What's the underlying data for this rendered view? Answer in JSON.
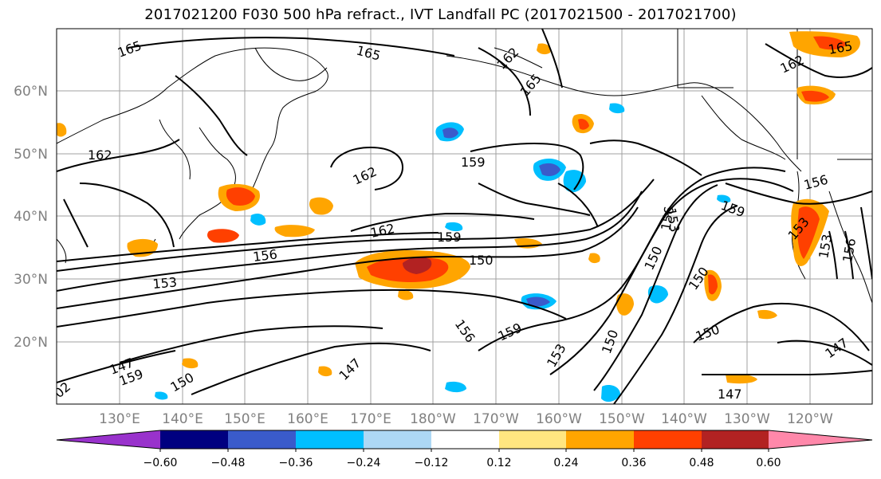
{
  "title": "2017021200 F030 500 hPa refract., IVT Landfall PC (2017021500 - 2017021700)",
  "map": {
    "lat_ticks": [
      "60°N",
      "50°N",
      "40°N",
      "30°N",
      "20°N"
    ],
    "lon_ticks": [
      "130°E",
      "140°E",
      "150°E",
      "160°E",
      "170°E",
      "180°W",
      "170°W",
      "160°W",
      "150°W",
      "140°W",
      "130°W",
      "120°W"
    ],
    "contour_labels": [
      "165",
      "165",
      "162",
      "165",
      "162",
      "165",
      "162",
      "162",
      "159",
      "162",
      "159",
      "156",
      "156",
      "153",
      "150",
      "153",
      "159",
      "156",
      "159",
      "153",
      "150",
      "150",
      "150",
      "150",
      "147",
      "147",
      "150",
      "147",
      "147",
      "159",
      "153",
      "153",
      "156",
      "156",
      "02"
    ]
  },
  "colorbar": {
    "colors": [
      "#9932CC",
      "#000080",
      "#3A5BCB",
      "#00BFFF",
      "#ADD8F5",
      "#FFFFFF",
      "#FFE680",
      "#FFA500",
      "#FF4000",
      "#B22222",
      "#FF88AA"
    ],
    "tick_labels": [
      "−0.60",
      "−0.48",
      "−0.36",
      "−0.24",
      "−0.12",
      "0.12",
      "0.24",
      "0.36",
      "0.48",
      "0.60"
    ]
  }
}
